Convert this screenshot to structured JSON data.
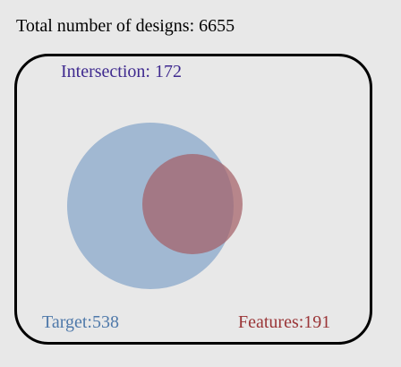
{
  "summary": {
    "total_designs_text": "Total number of designs: 6655"
  },
  "venn": {
    "intersection_text": "Intersection: 172",
    "target_text": "Target:538",
    "features_text": "Features:191",
    "target_value": 538,
    "features_value": 191,
    "intersection_value": 172
  },
  "colors": {
    "background": "#e8e8e8",
    "target_fill": "#9ab3cf",
    "features_fill": "#a35f67",
    "intersection_label": "#3f2a8f",
    "target_label": "#4f79aa",
    "features_label": "#9a3537"
  }
}
